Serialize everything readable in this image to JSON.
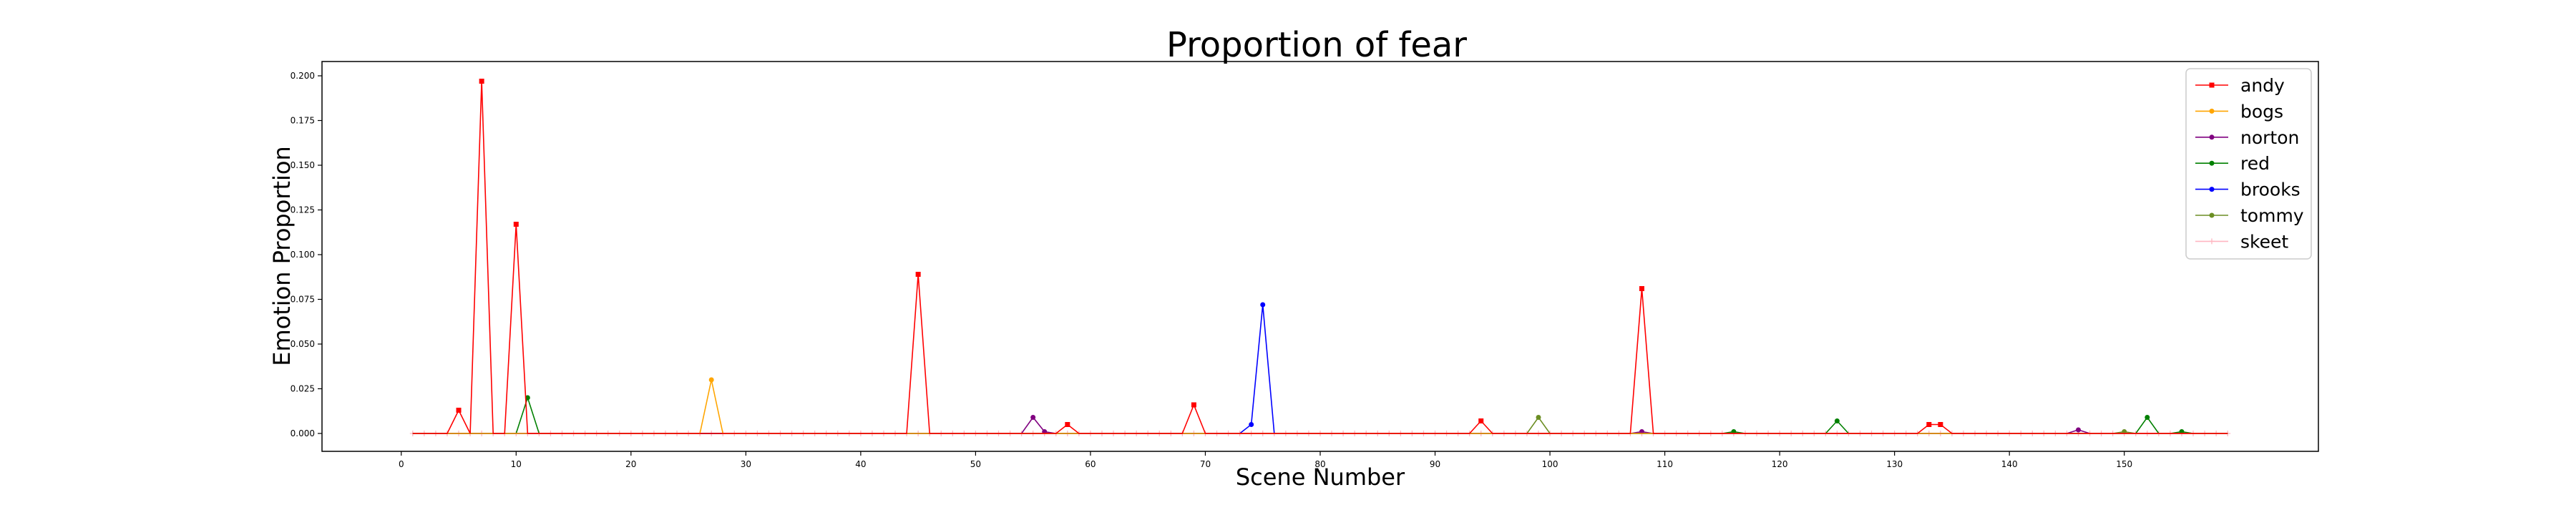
{
  "chart_data": {
    "type": "line",
    "title": "Proportion of fear",
    "xlabel": "Scene Number",
    "ylabel": "Emotion Proportion",
    "xlim": [
      -6.9,
      166.9
    ],
    "ylim": [
      -0.01,
      0.208
    ],
    "x_ticks": [
      0,
      10,
      20,
      30,
      40,
      50,
      60,
      70,
      80,
      90,
      100,
      110,
      120,
      130,
      140,
      150
    ],
    "y_ticks": [
      0.0,
      0.025,
      0.05,
      0.075,
      0.1,
      0.125,
      0.15,
      0.175,
      0.2
    ],
    "y_tick_labels": [
      "0.000",
      "0.025",
      "0.050",
      "0.075",
      "0.100",
      "0.125",
      "0.150",
      "0.175",
      "0.200"
    ],
    "legend_position": "top-right",
    "grid": false,
    "x_range": [
      1,
      159
    ],
    "series": [
      {
        "name": "andy",
        "color": "#ff0000",
        "marker": "square",
        "points": [
          [
            5,
            0.013
          ],
          [
            7,
            0.197
          ],
          [
            10,
            0.117
          ],
          [
            45,
            0.089
          ],
          [
            58,
            0.005
          ],
          [
            69,
            0.016
          ],
          [
            94,
            0.007
          ],
          [
            108,
            0.081
          ],
          [
            133,
            0.005
          ],
          [
            134,
            0.005
          ]
        ]
      },
      {
        "name": "bogs",
        "color": "#ffa500",
        "marker": "circle",
        "points": [
          [
            27,
            0.03
          ]
        ]
      },
      {
        "name": "norton",
        "color": "#800080",
        "marker": "circle",
        "points": [
          [
            55,
            0.009
          ],
          [
            56,
            0.001
          ],
          [
            108,
            0.001
          ],
          [
            146,
            0.002
          ]
        ]
      },
      {
        "name": "red",
        "color": "#008000",
        "marker": "circle",
        "points": [
          [
            11,
            0.02
          ],
          [
            116,
            0.001
          ],
          [
            125,
            0.007
          ],
          [
            152,
            0.009
          ],
          [
            155,
            0.001
          ]
        ]
      },
      {
        "name": "brooks",
        "color": "#0000ff",
        "marker": "circle",
        "points": [
          [
            74,
            0.005
          ],
          [
            75,
            0.072
          ]
        ]
      },
      {
        "name": "tommy",
        "color": "#6b8e23",
        "marker": "circle",
        "points": [
          [
            99,
            0.009
          ],
          [
            150,
            0.001
          ]
        ]
      },
      {
        "name": "skeet",
        "color": "#ffb6c1",
        "marker": "plus",
        "points": []
      }
    ]
  }
}
